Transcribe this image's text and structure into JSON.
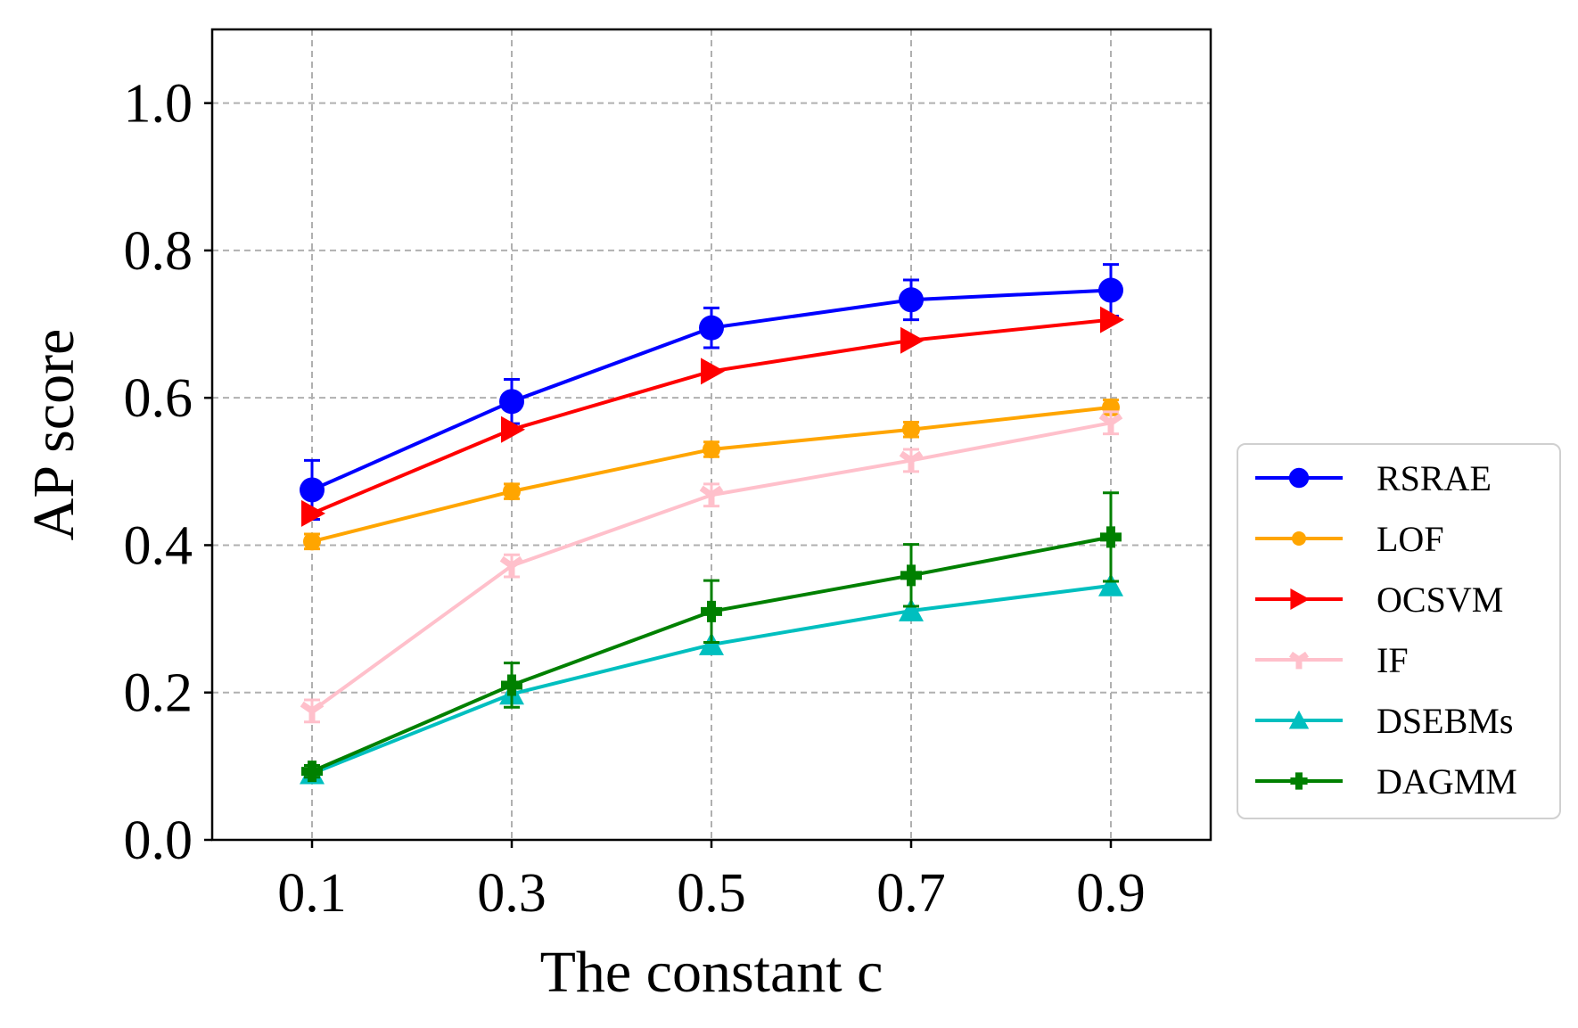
{
  "chart_data": {
    "type": "line",
    "title": "",
    "xlabel": "The constant c",
    "ylabel": "AP score",
    "x": [
      0.1,
      0.3,
      0.5,
      0.7,
      0.9
    ],
    "x_tick_labels": [
      "0.1",
      "0.3",
      "0.5",
      "0.7",
      "0.9"
    ],
    "y_ticks": [
      0.0,
      0.2,
      0.4,
      0.6,
      0.8,
      1.0
    ],
    "y_tick_labels": [
      "0.0",
      "0.2",
      "0.4",
      "0.6",
      "0.8",
      "1.0"
    ],
    "xlim": [
      0.0,
      1.0
    ],
    "ylim": [
      0.0,
      1.1
    ],
    "grid": true,
    "legend_position": "outside right",
    "series": [
      {
        "name": "RSRAE",
        "color": "#0000ff",
        "marker": "circle",
        "values": [
          0.475,
          0.595,
          0.695,
          0.733,
          0.746
        ],
        "errors": [
          0.04,
          0.03,
          0.027,
          0.027,
          0.035
        ]
      },
      {
        "name": "LOF",
        "color": "#ffa500",
        "marker": "small-circle",
        "values": [
          0.405,
          0.473,
          0.53,
          0.557,
          0.587
        ],
        "errors": [
          0.01,
          0.01,
          0.01,
          0.01,
          0.01
        ]
      },
      {
        "name": "OCSVM",
        "color": "#ff0000",
        "marker": "triangle-right",
        "values": [
          0.443,
          0.557,
          0.636,
          0.678,
          0.706
        ],
        "errors": [
          0.0,
          0.0,
          0.0,
          0.0,
          0.0
        ]
      },
      {
        "name": "IF",
        "color": "#ffc0cb",
        "marker": "tri-down",
        "values": [
          0.175,
          0.372,
          0.468,
          0.515,
          0.566
        ],
        "errors": [
          0.015,
          0.015,
          0.015,
          0.015,
          0.015
        ]
      },
      {
        "name": "DSEBMs",
        "color": "#00bfbf",
        "marker": "triangle-up",
        "values": [
          0.09,
          0.198,
          0.265,
          0.311,
          0.345
        ],
        "errors": [
          0.0,
          0.0,
          0.0,
          0.0,
          0.0
        ]
      },
      {
        "name": "DAGMM",
        "color": "#008000",
        "marker": "plus",
        "values": [
          0.093,
          0.21,
          0.31,
          0.359,
          0.411
        ],
        "errors": [
          0.008,
          0.03,
          0.042,
          0.042,
          0.06
        ]
      }
    ]
  }
}
